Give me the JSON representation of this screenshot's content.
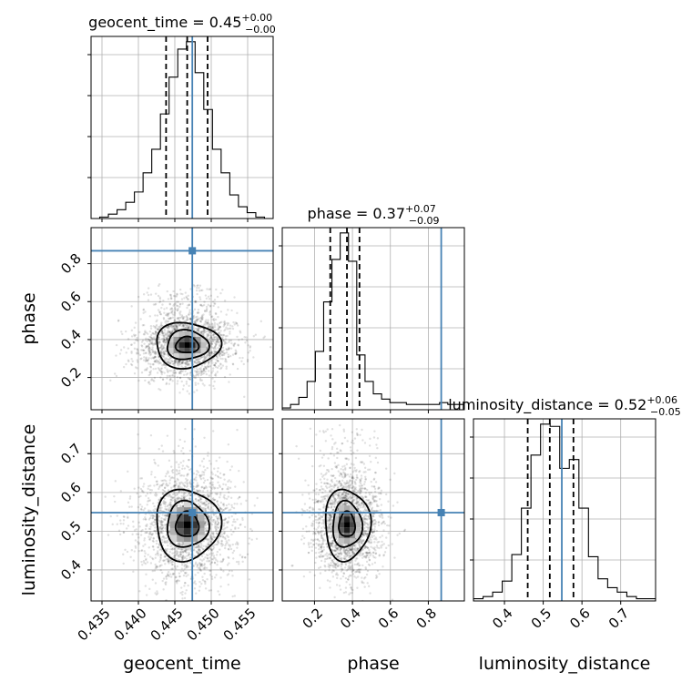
{
  "chart_data": {
    "type": "corner",
    "parameters": [
      "geocent_time",
      "phase",
      "luminosity_distance"
    ],
    "axis_labels": [
      "geocent_time",
      "phase",
      "luminosity_distance"
    ],
    "ranges": [
      [
        0.4335,
        0.4585
      ],
      [
        0.03,
        0.99
      ],
      [
        0.32,
        0.79
      ]
    ],
    "ticks": [
      {
        "values": [
          0.435,
          0.44,
          0.445,
          0.45,
          0.455
        ],
        "labels": [
          "0.435",
          "0.440",
          "0.445",
          "0.450",
          "0.455"
        ]
      },
      {
        "values": [
          0.2,
          0.4,
          0.6,
          0.8
        ],
        "labels": [
          "0.2",
          "0.4",
          "0.6",
          "0.8"
        ]
      },
      {
        "values": [
          0.4,
          0.5,
          0.6,
          0.7
        ],
        "labels": [
          "0.4",
          "0.5",
          "0.6",
          "0.7"
        ]
      }
    ],
    "titles": [
      {
        "name": "geocent_time",
        "value": "0.45",
        "plus": "+0.00",
        "minus": "−0.00"
      },
      {
        "name": "phase",
        "value": "0.37",
        "plus": "+0.07",
        "minus": "−0.09"
      },
      {
        "name": "luminosity_distance",
        "value": "0.52",
        "plus": "+0.06",
        "minus": "−0.05"
      }
    ],
    "truths": [
      0.4474,
      0.868,
      0.548
    ],
    "quantiles": [
      [
        0.4438,
        0.4467,
        0.4495
      ],
      [
        0.283,
        0.371,
        0.437
      ],
      [
        0.46,
        0.517,
        0.578
      ]
    ],
    "histograms": [
      {
        "edges": [
          0.4335,
          0.4585
        ],
        "counts": [
          0,
          1,
          3,
          6,
          11,
          18,
          31,
          47,
          71,
          96,
          115,
          120,
          99,
          74,
          47,
          31,
          16,
          8,
          4,
          1,
          0
        ]
      },
      {
        "edges": [
          0.03,
          0.99
        ],
        "counts": [
          1,
          3,
          7,
          16,
          33,
          61,
          85,
          100,
          84,
          31,
          16,
          9,
          6,
          4,
          4,
          3,
          3,
          3,
          3,
          4,
          3,
          3
        ]
      },
      {
        "edges": [
          0.32,
          0.79
        ],
        "counts": [
          1,
          2,
          4,
          9,
          21,
          42,
          66,
          80,
          79,
          60,
          64,
          42,
          20,
          10,
          6,
          4,
          2,
          1,
          1
        ]
      }
    ],
    "grid": true
  }
}
